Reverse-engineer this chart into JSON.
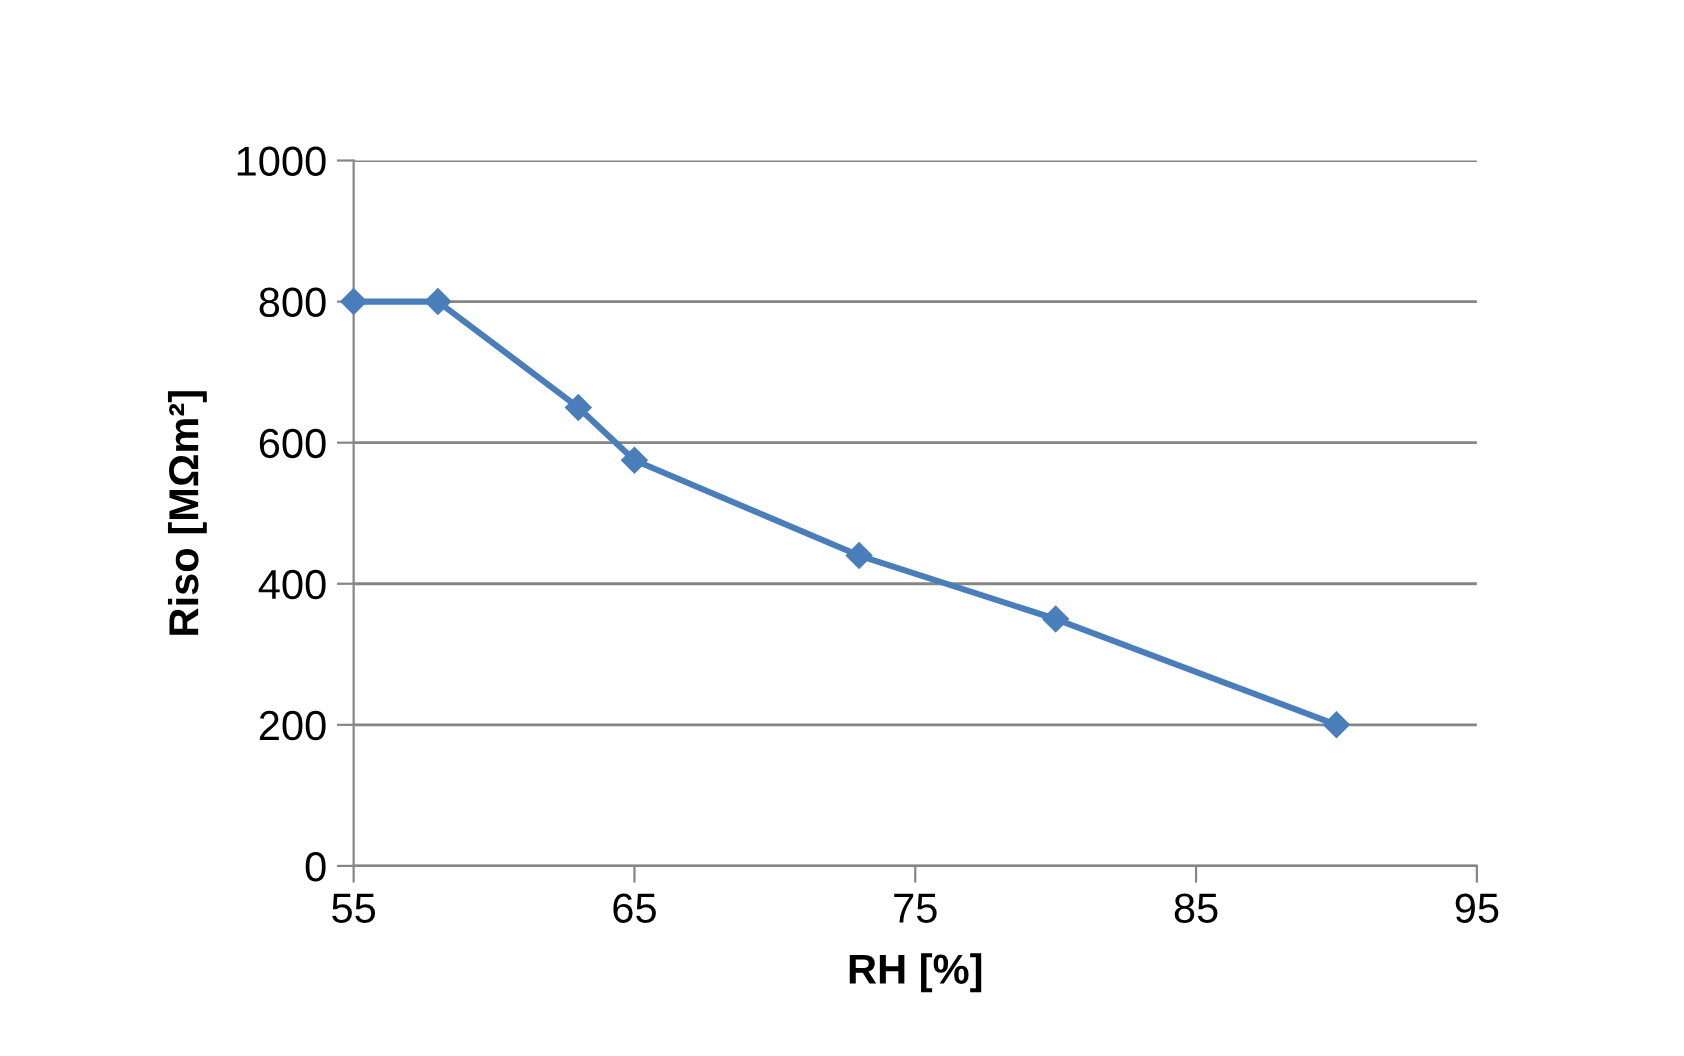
{
  "chart_data": {
    "type": "line",
    "xlabel": "RH [%]",
    "ylabel": "Riso [MΩm²]",
    "x": [
      55,
      58,
      63,
      65,
      73,
      80,
      90
    ],
    "series": [
      {
        "color": "#4a7ebb",
        "values": [
          800,
          800,
          650,
          575,
          440,
          350,
          200
        ]
      }
    ],
    "xlim": [
      55,
      95
    ],
    "xticks": [
      55,
      65,
      75,
      85,
      95
    ],
    "ylim": [
      0,
      1000
    ],
    "yticks": [
      0,
      200,
      400,
      600,
      800,
      1000
    ],
    "grid": "y",
    "marker": "diamond",
    "line_style": "solid"
  }
}
